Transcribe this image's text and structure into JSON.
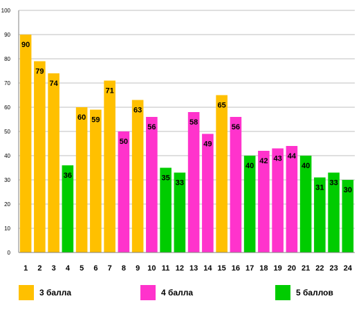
{
  "chart_data": {
    "type": "bar",
    "categories": [
      "1",
      "2",
      "3",
      "4",
      "5",
      "6",
      "7",
      "8",
      "9",
      "10",
      "11",
      "12",
      "13",
      "14",
      "15",
      "16",
      "17",
      "18",
      "19",
      "20",
      "21",
      "22",
      "23",
      "24"
    ],
    "values": [
      90,
      79,
      74,
      36,
      60,
      59,
      71,
      50,
      63,
      56,
      35,
      33,
      58,
      49,
      65,
      56,
      40,
      42,
      43,
      44,
      40,
      31,
      33,
      30
    ],
    "groups": [
      "3 балла",
      "3 балла",
      "3 балла",
      "5 баллов",
      "3 балла",
      "3 балла",
      "3 балла",
      "4 балла",
      "3 балла",
      "4 балла",
      "5 баллов",
      "5 баллов",
      "4 балла",
      "4 балла",
      "3 балла",
      "4 балла",
      "5 баллов",
      "4 балла",
      "4 балла",
      "4 балла",
      "5 баллов",
      "5 баллов",
      "5 баллов",
      "5 баллов"
    ],
    "ylim": [
      0,
      100
    ],
    "yticks": [
      0,
      10,
      20,
      30,
      40,
      50,
      60,
      70,
      80,
      90,
      100
    ],
    "grid": true,
    "legend_position": "bottom",
    "legend": [
      {
        "name": "3 балла",
        "color": "#FFC000"
      },
      {
        "name": "4 балла",
        "color": "#FF33CC"
      },
      {
        "name": "5 баллов",
        "color": "#00CC00"
      }
    ]
  }
}
